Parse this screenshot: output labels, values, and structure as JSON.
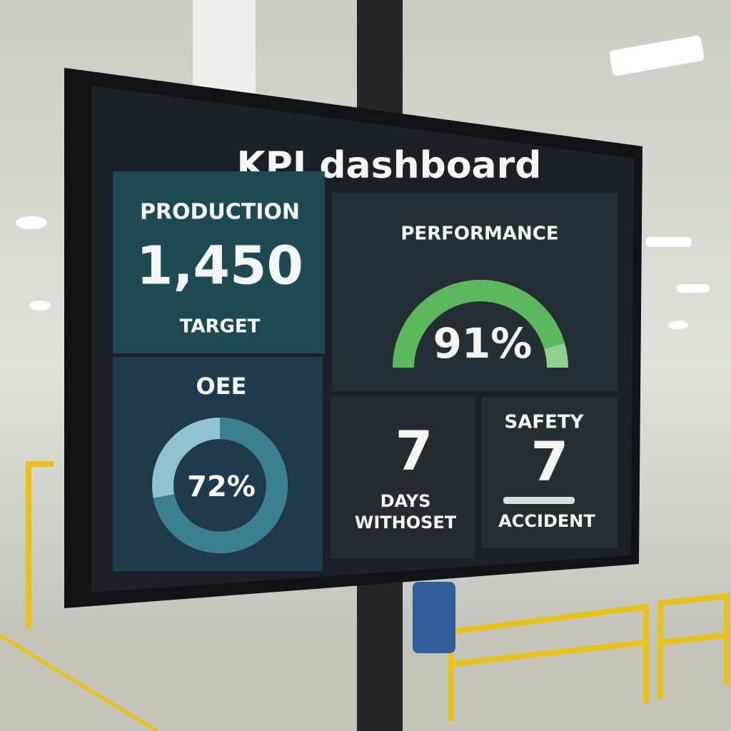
{
  "title": "KPI dashboard",
  "production": {
    "label": "PRODUCTION",
    "value": "1,450",
    "caption": "TARGET"
  },
  "performance": {
    "label": "PERFORMANCE",
    "reading": {
      "value": 91,
      "label": "91%"
    }
  },
  "oee": {
    "label": "OEE",
    "reading": {
      "value": 72,
      "label": "72%"
    }
  },
  "days": {
    "value": "7",
    "line1": "DAYS",
    "line2": "WITHOSET"
  },
  "safety": {
    "label": "SAFETY",
    "value": "7",
    "caption": "ACCIDENT"
  }
}
